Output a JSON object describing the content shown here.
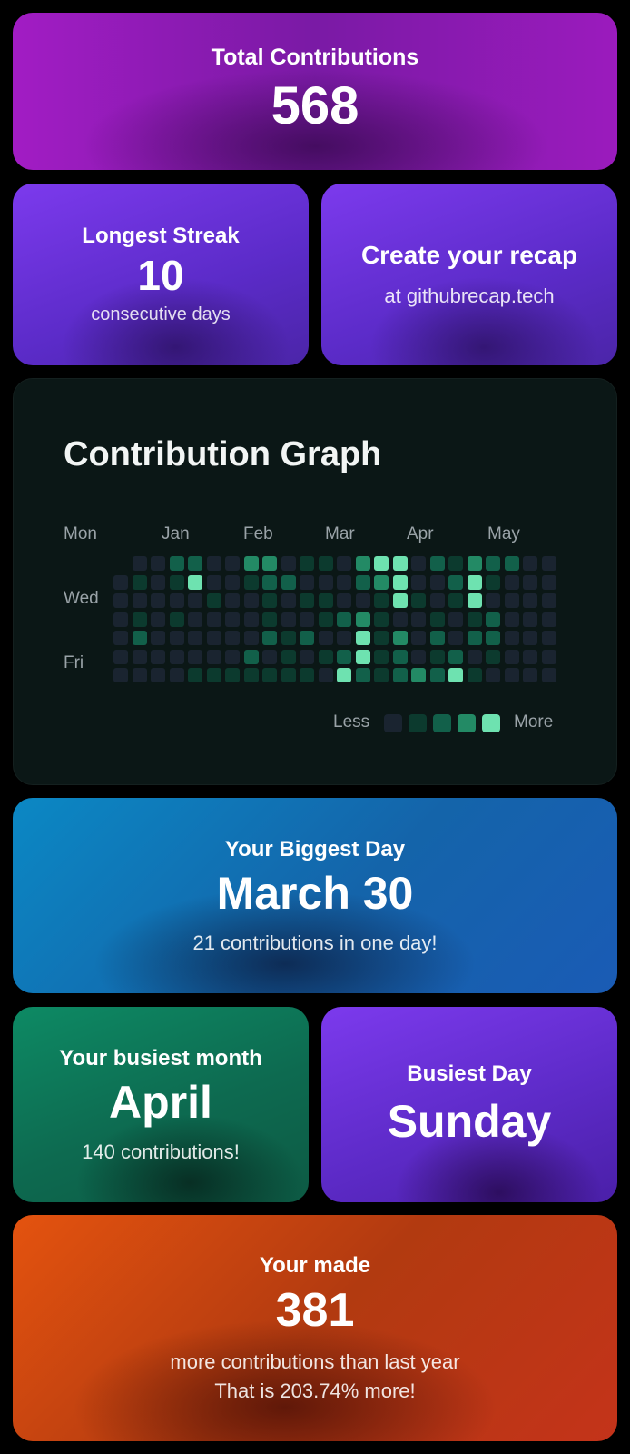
{
  "total": {
    "label": "Total Contributions",
    "value": "568"
  },
  "streak": {
    "label": "Longest Streak",
    "value": "10",
    "sub": "consecutive days"
  },
  "recap": {
    "title": "Create your recap",
    "sub": "at githubrecap.tech"
  },
  "graph": {
    "title": "Contribution Graph",
    "days": [
      "Mon",
      "Wed",
      "Fri"
    ],
    "months": [
      "Jan",
      "Feb",
      "Mar",
      "Apr",
      "May"
    ],
    "legend": {
      "less": "Less",
      "more": "More"
    },
    "colors": [
      "#1a2430",
      "#0c3a2e",
      "#12604a",
      "#238a65",
      "#6ee2b0"
    ],
    "weeks": [
      [
        -1,
        0,
        0,
        0,
        0,
        0,
        0
      ],
      [
        0,
        1,
        0,
        1,
        2,
        0,
        0
      ],
      [
        0,
        0,
        0,
        0,
        0,
        0,
        0
      ],
      [
        2,
        1,
        0,
        1,
        0,
        0,
        0
      ],
      [
        2,
        4,
        0,
        0,
        0,
        0,
        1
      ],
      [
        0,
        0,
        1,
        0,
        0,
        0,
        1
      ],
      [
        0,
        0,
        0,
        0,
        0,
        0,
        1
      ],
      [
        3,
        1,
        0,
        0,
        0,
        2,
        1
      ],
      [
        3,
        2,
        1,
        1,
        2,
        0,
        1
      ],
      [
        0,
        2,
        0,
        0,
        1,
        1,
        1
      ],
      [
        1,
        0,
        1,
        0,
        2,
        0,
        1
      ],
      [
        1,
        0,
        1,
        1,
        0,
        1,
        0
      ],
      [
        0,
        0,
        0,
        2,
        0,
        2,
        4
      ],
      [
        3,
        2,
        0,
        3,
        4,
        4,
        2
      ],
      [
        4,
        3,
        1,
        1,
        1,
        1,
        1
      ],
      [
        4,
        4,
        4,
        0,
        3,
        2,
        2
      ],
      [
        0,
        0,
        1,
        0,
        0,
        0,
        3
      ],
      [
        2,
        0,
        0,
        1,
        2,
        1,
        2
      ],
      [
        1,
        2,
        1,
        0,
        0,
        2,
        4
      ],
      [
        3,
        4,
        4,
        1,
        2,
        0,
        1
      ],
      [
        2,
        1,
        0,
        2,
        2,
        1,
        0
      ],
      [
        2,
        0,
        0,
        0,
        0,
        0,
        0
      ],
      [
        0,
        0,
        0,
        0,
        0,
        0,
        0
      ],
      [
        0,
        0,
        0,
        0,
        0,
        0,
        0
      ]
    ]
  },
  "biggest_day": {
    "label": "Your Biggest Day",
    "value": "March 30",
    "sub": "21 contributions in one day!"
  },
  "busiest_month": {
    "label": "Your busiest month",
    "value": "April",
    "sub": "140 contributions!"
  },
  "busiest_day": {
    "label": "Busiest Day",
    "value": "Sunday"
  },
  "made": {
    "label": "Your made",
    "value": "381",
    "line1": "more contributions than last year",
    "line2": "That is 203.74% more!"
  }
}
